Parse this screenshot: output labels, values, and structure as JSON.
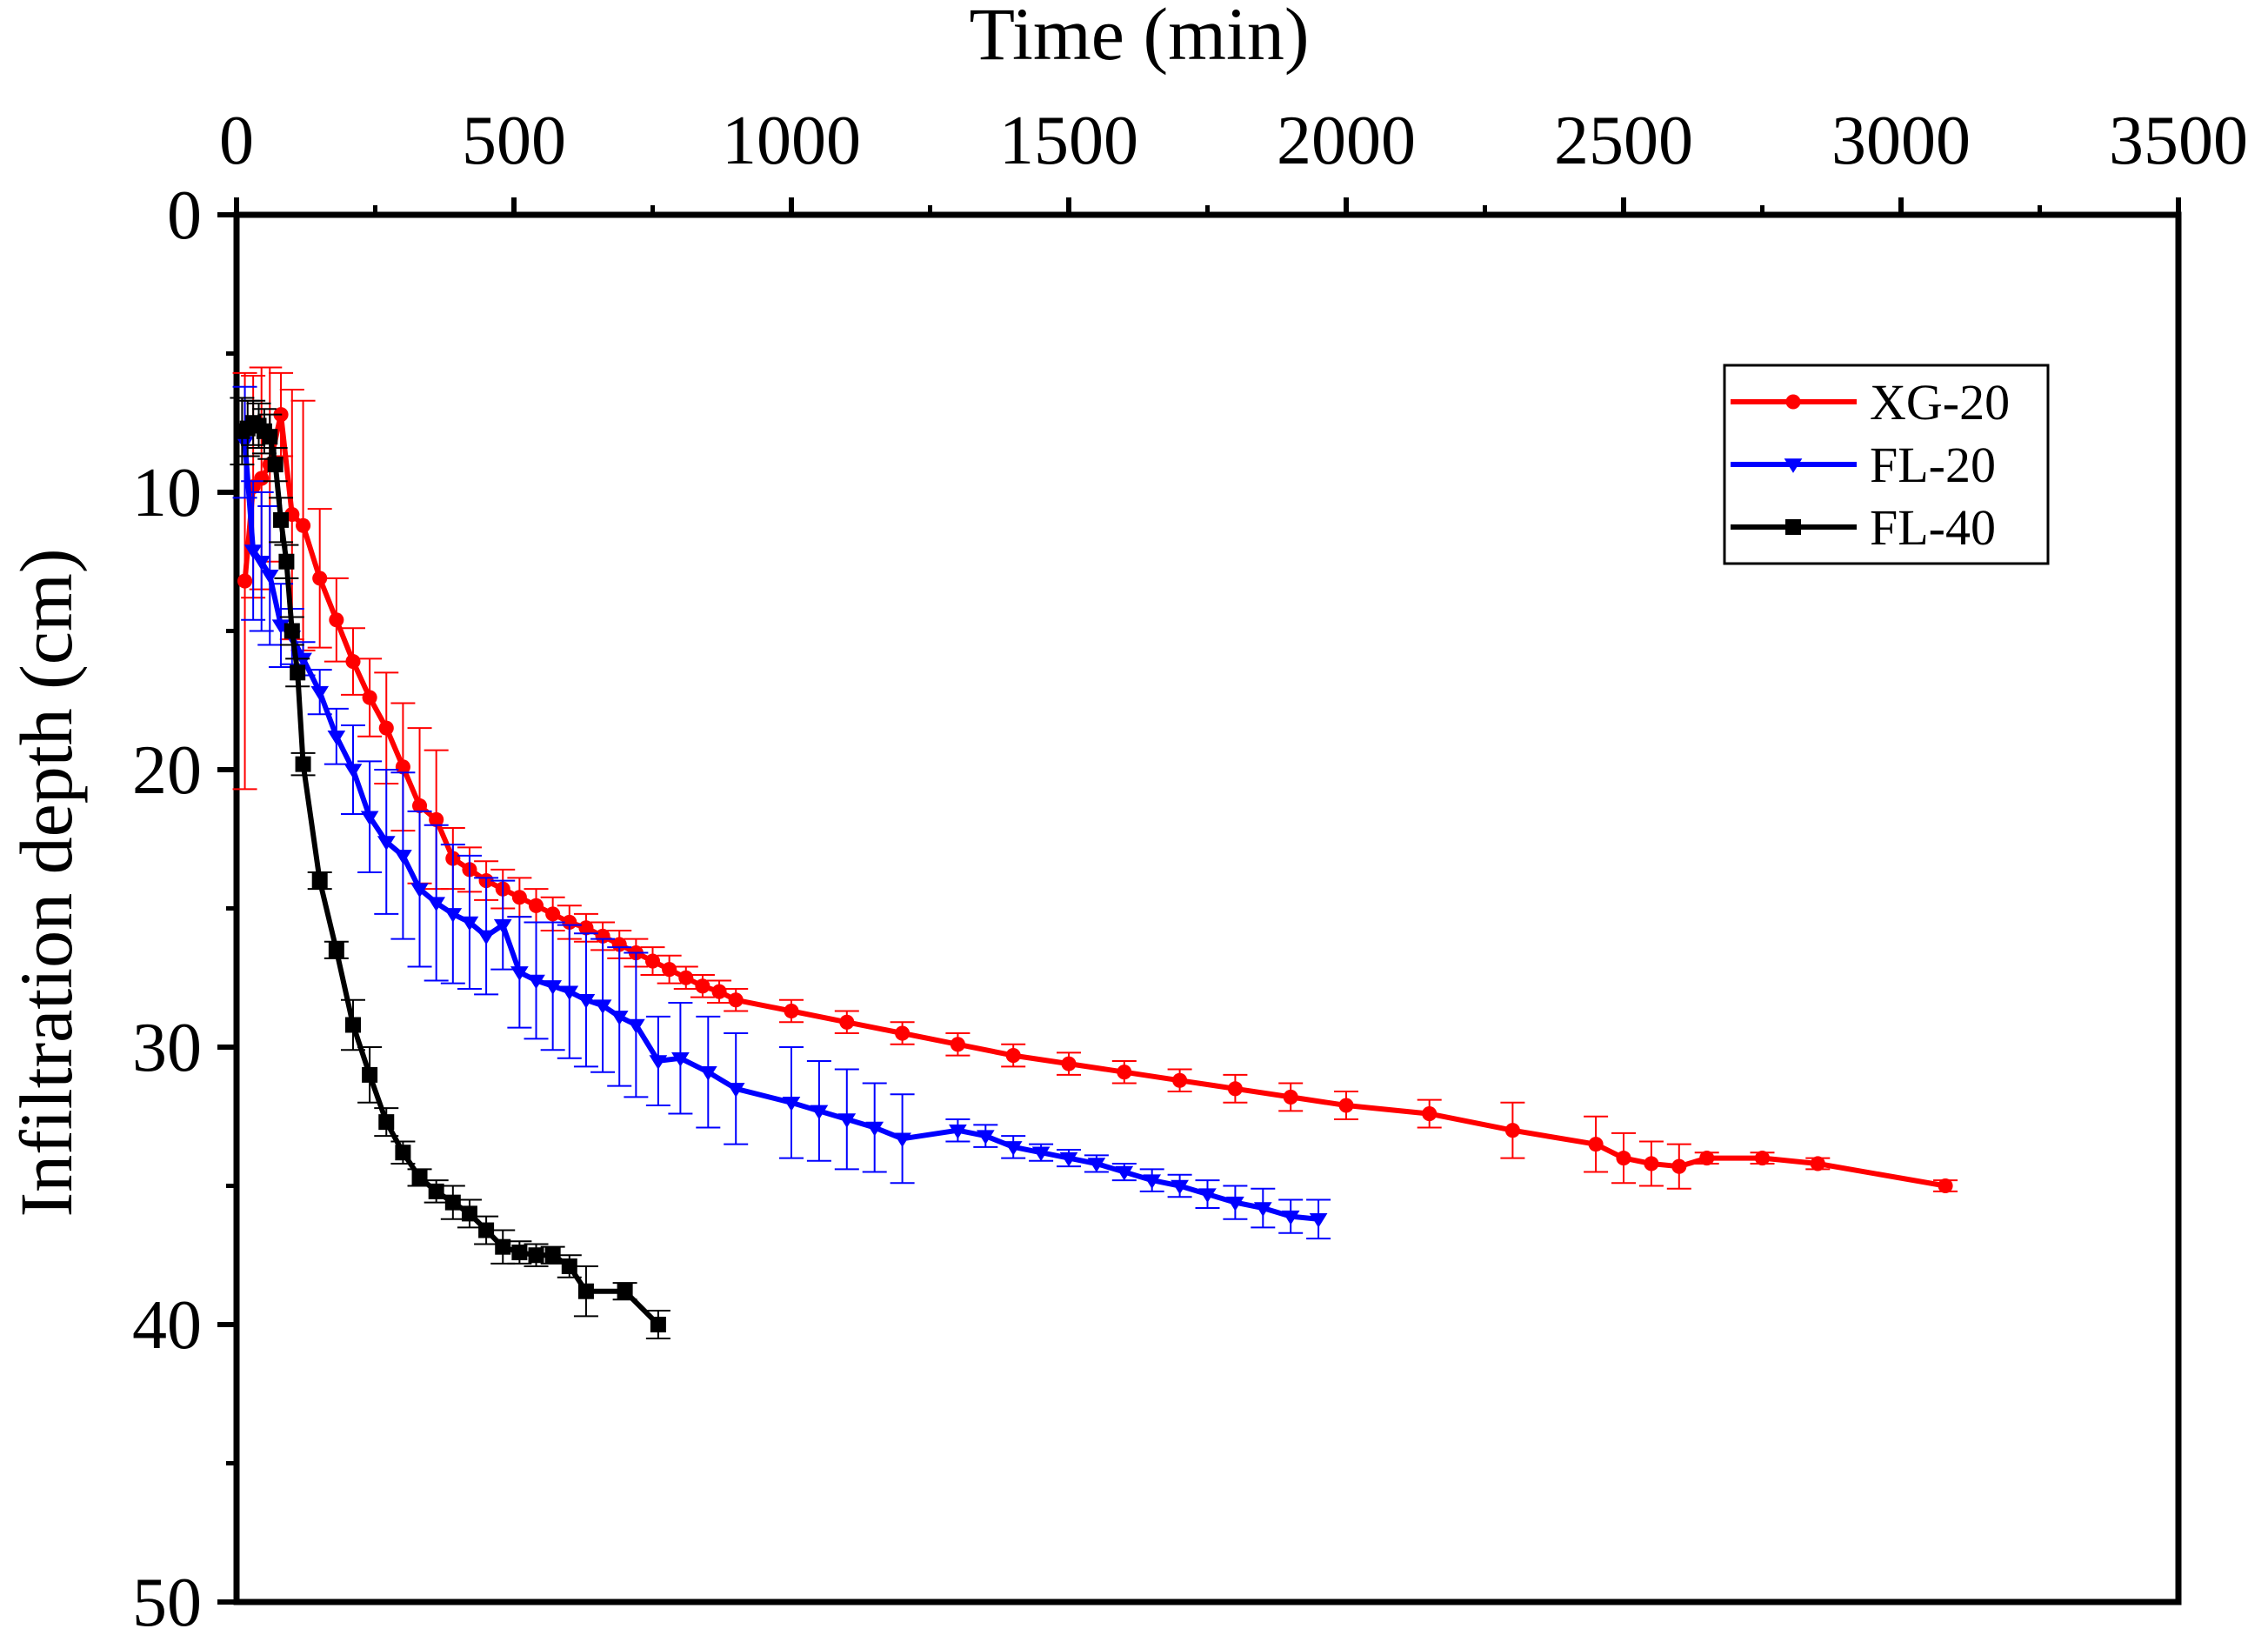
{
  "chart_data": {
    "type": "line",
    "title": "",
    "xlabel": "Time (min)",
    "ylabel": "Infiltration depth (cm)",
    "xaxis_position": "top",
    "yaxis_inverted": true,
    "xlim": [
      0,
      3500
    ],
    "ylim": [
      0,
      50
    ],
    "x_ticks": [
      "0",
      "500",
      "1000",
      "1500",
      "2000",
      "2500",
      "3000",
      "3500"
    ],
    "y_ticks": [
      "0",
      "10",
      "20",
      "30",
      "40",
      "50"
    ],
    "legend_position": "top-right",
    "grid": false,
    "series": [
      {
        "name": "XG-20",
        "color": "#ff0000",
        "marker": "circle",
        "x": [
          15,
          30,
          45,
          60,
          80,
          100,
          120,
          150,
          180,
          210,
          240,
          270,
          300,
          330,
          360,
          390,
          420,
          450,
          480,
          510,
          540,
          570,
          600,
          630,
          660,
          690,
          720,
          750,
          780,
          810,
          840,
          870,
          900,
          1000,
          1100,
          1200,
          1300,
          1400,
          1500,
          1600,
          1700,
          1800,
          1900,
          2000,
          2150,
          2300,
          2450,
          2500,
          2550,
          2600,
          2650,
          2750,
          2850,
          3080
        ],
        "y": [
          13.2,
          9.8,
          9.5,
          9.0,
          7.2,
          10.8,
          11.2,
          13.1,
          14.6,
          16.1,
          17.4,
          18.5,
          19.9,
          21.3,
          21.8,
          23.2,
          23.6,
          24.0,
          24.3,
          24.6,
          24.9,
          25.2,
          25.5,
          25.7,
          26.0,
          26.3,
          26.6,
          26.9,
          27.2,
          27.5,
          27.8,
          28.0,
          28.3,
          28.7,
          29.1,
          29.5,
          29.9,
          30.3,
          30.6,
          30.9,
          31.2,
          31.5,
          31.8,
          32.1,
          32.4,
          33.0,
          33.5,
          34.0,
          34.2,
          34.3,
          34.0,
          34.0,
          34.2,
          35.0
        ],
        "errors": [
          7.5,
          4.0,
          4.0,
          3.5,
          1.5,
          4.5,
          4.5,
          2.5,
          1.5,
          1.2,
          1.4,
          2.0,
          2.3,
          2.8,
          2.5,
          1.1,
          0.8,
          0.7,
          0.7,
          0.7,
          0.6,
          0.6,
          0.6,
          0.5,
          0.5,
          0.5,
          0.5,
          0.5,
          0.5,
          0.4,
          0.4,
          0.4,
          0.4,
          0.4,
          0.4,
          0.4,
          0.4,
          0.4,
          0.4,
          0.4,
          0.4,
          0.5,
          0.5,
          0.5,
          0.5,
          1.0,
          1.0,
          0.9,
          0.8,
          0.8,
          0.2,
          0.2,
          0.2,
          0.2
        ]
      },
      {
        "name": "FL-20",
        "color": "#0000ff",
        "marker": "triangle-down",
        "x": [
          15,
          30,
          45,
          60,
          80,
          100,
          120,
          150,
          180,
          210,
          240,
          270,
          300,
          330,
          360,
          390,
          420,
          450,
          480,
          510,
          540,
          570,
          600,
          630,
          660,
          690,
          720,
          760,
          800,
          850,
          900,
          1000,
          1050,
          1100,
          1150,
          1200,
          1300,
          1350,
          1400,
          1450,
          1500,
          1550,
          1600,
          1650,
          1700,
          1750,
          1800,
          1850,
          1900,
          1950
        ],
        "y": [
          8.2,
          12.1,
          12.5,
          13.0,
          14.8,
          15.2,
          16.0,
          17.2,
          18.8,
          20.0,
          21.7,
          22.6,
          23.1,
          24.3,
          24.8,
          25.2,
          25.5,
          26.0,
          25.6,
          27.3,
          27.6,
          27.8,
          28.0,
          28.3,
          28.5,
          28.9,
          29.2,
          30.5,
          30.4,
          30.9,
          31.5,
          32.0,
          32.3,
          32.6,
          32.9,
          33.3,
          33.0,
          33.2,
          33.6,
          33.8,
          34.0,
          34.2,
          34.5,
          34.8,
          35.0,
          35.3,
          35.6,
          35.8,
          36.1,
          36.2
        ],
        "errors": [
          2.0,
          2.5,
          2.5,
          2.5,
          1.5,
          1.0,
          0.6,
          0.8,
          1.0,
          1.6,
          2.0,
          2.6,
          3.0,
          2.8,
          2.8,
          2.5,
          2.4,
          2.1,
          1.6,
          2.0,
          2.1,
          2.3,
          2.4,
          2.4,
          2.4,
          2.5,
          2.6,
          1.6,
          2.0,
          2.0,
          2.0,
          2.0,
          1.8,
          1.8,
          1.6,
          1.6,
          0.4,
          0.4,
          0.4,
          0.3,
          0.3,
          0.3,
          0.3,
          0.4,
          0.4,
          0.5,
          0.6,
          0.7,
          0.6,
          0.7
        ]
      },
      {
        "name": "FL-40",
        "color": "#000000",
        "marker": "square",
        "x": [
          10,
          20,
          30,
          40,
          50,
          60,
          70,
          80,
          90,
          100,
          110,
          120,
          150,
          180,
          210,
          240,
          270,
          300,
          330,
          360,
          390,
          420,
          450,
          480,
          510,
          540,
          570,
          600,
          630,
          700,
          760
        ],
        "y": [
          7.8,
          7.7,
          7.5,
          7.6,
          7.8,
          8.0,
          9.0,
          11.0,
          12.5,
          15.0,
          16.5,
          19.8,
          24.0,
          26.5,
          29.2,
          31.0,
          32.7,
          33.8,
          34.7,
          35.2,
          35.6,
          36.0,
          36.6,
          37.2,
          37.4,
          37.5,
          37.5,
          37.9,
          38.8,
          38.8,
          40.0
        ],
        "errors": [
          1.2,
          1.0,
          0.8,
          0.8,
          0.8,
          0.8,
          0.6,
          0.8,
          0.6,
          0.5,
          0.5,
          0.4,
          0.3,
          0.3,
          0.9,
          1.0,
          0.5,
          0.4,
          0.3,
          0.4,
          0.6,
          0.5,
          0.5,
          0.6,
          0.4,
          0.4,
          0.3,
          0.4,
          0.9,
          0.3,
          0.5
        ]
      }
    ]
  }
}
